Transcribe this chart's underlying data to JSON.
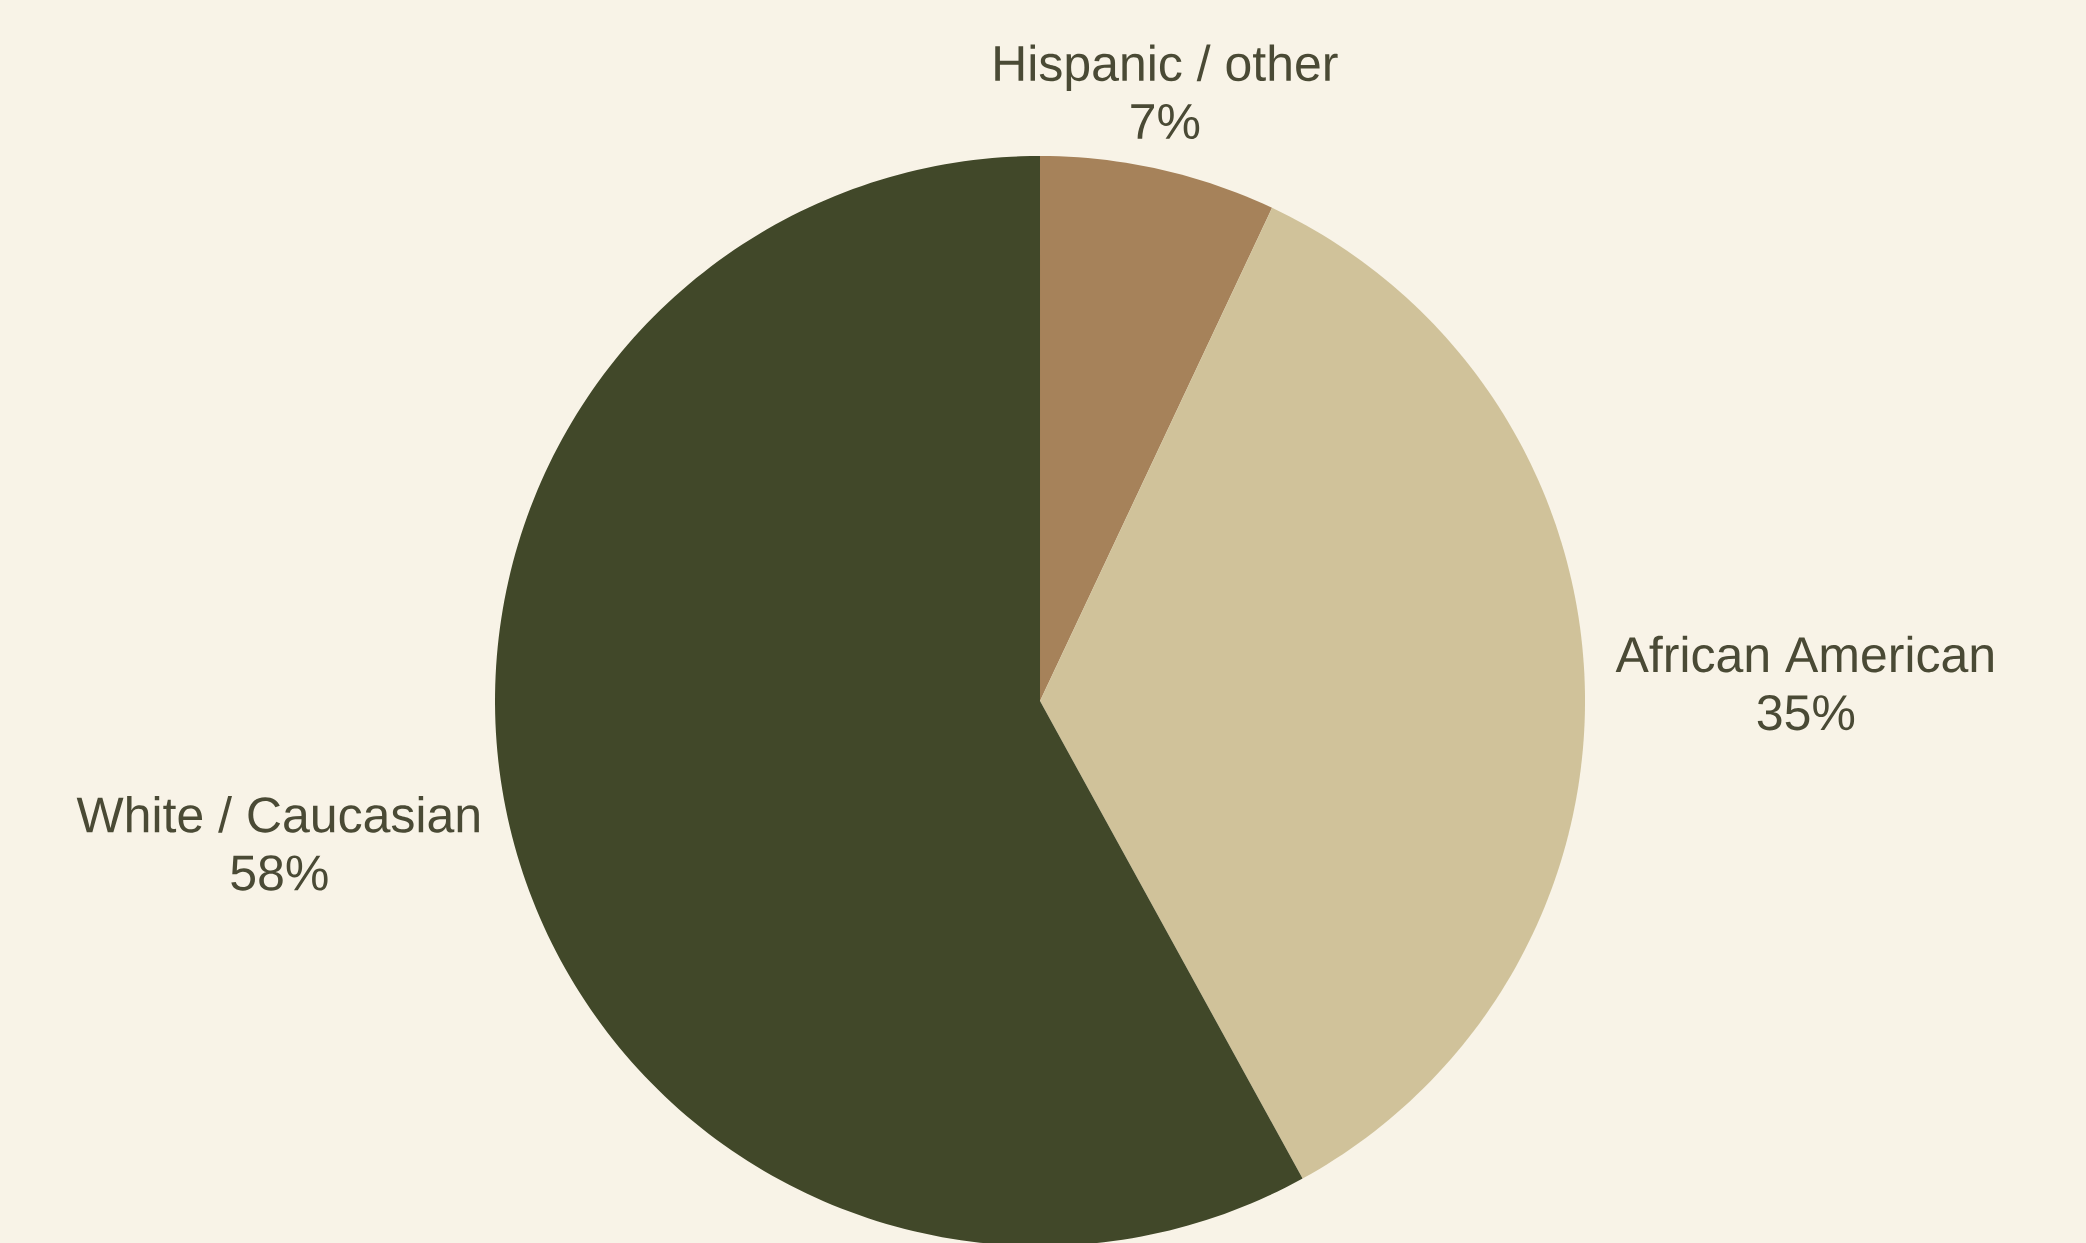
{
  "chart_data": {
    "type": "pie",
    "categories": [
      "Hispanic / other",
      "African American",
      "White / Caucasian"
    ],
    "values": [
      7,
      35,
      58
    ],
    "value_labels": [
      "7%",
      "35%",
      "58%"
    ],
    "colors": [
      "#a6825a",
      "#d0c29a",
      "#414829"
    ]
  }
}
